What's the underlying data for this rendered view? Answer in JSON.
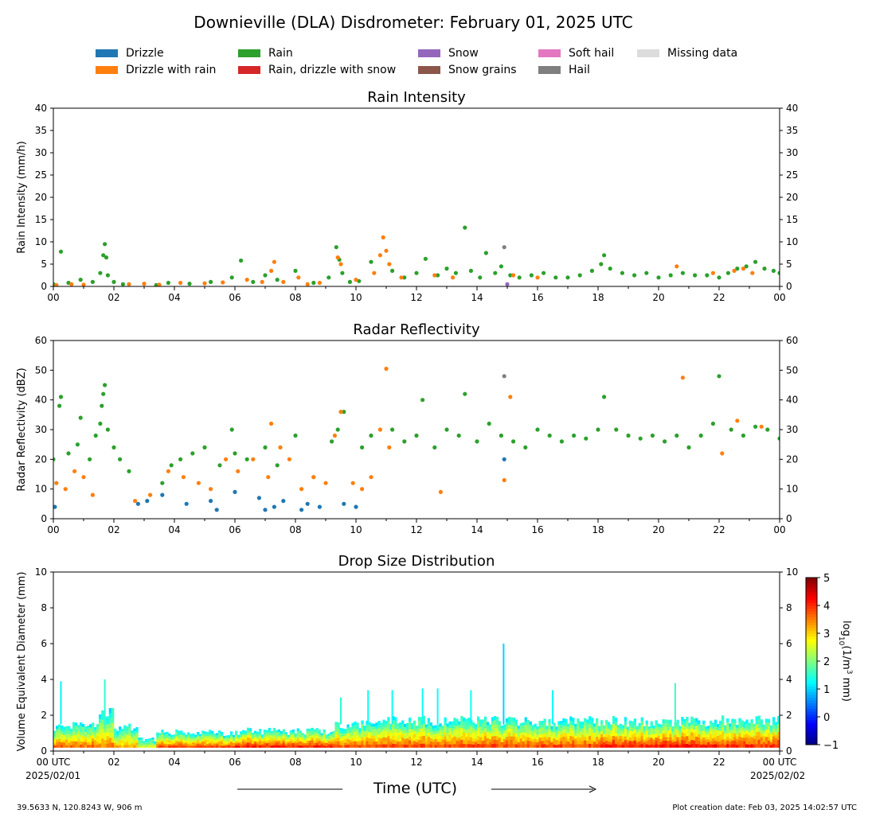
{
  "title": "Downieville (DLA) Disdrometer: February 01, 2025 UTC",
  "legend": [
    {
      "label": "Drizzle",
      "color": "#1f77b4"
    },
    {
      "label": "Drizzle with rain",
      "color": "#ff7f0e"
    },
    {
      "label": "Rain",
      "color": "#2ca02c"
    },
    {
      "label": "Rain, drizzle with snow",
      "color": "#d62728"
    },
    {
      "label": "Snow",
      "color": "#9467bd"
    },
    {
      "label": "Snow grains",
      "color": "#8c564b"
    },
    {
      "label": "Soft hail",
      "color": "#e377c2"
    },
    {
      "label": "Hail",
      "color": "#7f7f7f"
    },
    {
      "label": "Missing data",
      "color": "#dcdcdc"
    }
  ],
  "x_axis": {
    "label": "Time (UTC)",
    "ticks": [
      "00",
      "02",
      "04",
      "06",
      "08",
      "10",
      "12",
      "14",
      "16",
      "18",
      "20",
      "22",
      "00"
    ],
    "bottom_first": "00 UTC",
    "bottom_last": "00 UTC",
    "start_date": "2025/02/01",
    "end_date": "2025/02/02"
  },
  "footer": {
    "location": "39.5633 N, 120.8243 W, 906 m",
    "created": "Plot creation date: Feb 03, 2025 14:02:57 UTC"
  },
  "chart_data": [
    {
      "type": "scatter",
      "title": "Rain Intensity",
      "ylabel": "Rain Intensity (mm/h)",
      "xlim": [
        0,
        24
      ],
      "ylim": [
        0,
        40
      ],
      "yticks": [
        0,
        5,
        10,
        15,
        20,
        25,
        30,
        35,
        40
      ],
      "series": [
        {
          "name": "Rain",
          "color": "#2ca02c",
          "x": [
            0.0,
            0.25,
            0.5,
            0.9,
            1.3,
            1.55,
            1.65,
            1.7,
            1.75,
            1.8,
            2.0,
            2.3,
            3.4,
            3.8,
            4.5,
            5.2,
            5.9,
            6.2,
            6.6,
            7.0,
            7.4,
            8.0,
            8.6,
            9.1,
            9.35,
            9.45,
            9.55,
            9.8,
            10.1,
            10.5,
            11.2,
            11.6,
            12.0,
            12.3,
            12.7,
            13.0,
            13.3,
            13.6,
            13.8,
            14.1,
            14.3,
            14.6,
            14.8,
            15.1,
            15.4,
            15.8,
            16.2,
            16.6,
            17.0,
            17.4,
            17.8,
            18.1,
            18.2,
            18.4,
            18.8,
            19.2,
            19.6,
            20.0,
            20.4,
            20.8,
            21.2,
            21.6,
            22.0,
            22.3,
            22.6,
            22.9,
            23.2,
            23.5,
            23.8,
            24.0
          ],
          "y": [
            0.5,
            7.8,
            0.8,
            1.5,
            1.0,
            3.0,
            7.0,
            9.5,
            6.5,
            2.5,
            1.0,
            0.5,
            0.3,
            0.8,
            0.6,
            1.0,
            2.0,
            5.8,
            1.0,
            2.5,
            1.5,
            3.5,
            0.8,
            2.0,
            8.8,
            6.0,
            3.0,
            1.0,
            1.2,
            5.5,
            3.5,
            2.0,
            3.0,
            6.2,
            2.5,
            4.0,
            3.0,
            13.2,
            3.5,
            2.0,
            7.5,
            3.0,
            4.5,
            2.5,
            2.0,
            2.5,
            3.0,
            2.0,
            2.0,
            2.5,
            3.5,
            5.0,
            7.0,
            4.0,
            3.0,
            2.5,
            3.0,
            2.0,
            2.5,
            3.0,
            2.5,
            2.5,
            2.0,
            3.0,
            4.0,
            4.5,
            5.5,
            4.0,
            3.5,
            3.0
          ]
        },
        {
          "name": "Drizzle with rain",
          "color": "#ff7f0e",
          "x": [
            0.1,
            0.6,
            1.0,
            2.5,
            3.0,
            3.5,
            4.2,
            5.0,
            5.6,
            6.4,
            6.9,
            7.2,
            7.3,
            7.6,
            8.1,
            8.4,
            8.8,
            9.4,
            9.5,
            10.0,
            10.6,
            10.8,
            10.9,
            11.0,
            11.1,
            11.5,
            12.6,
            13.2,
            15.2,
            16.0,
            20.6,
            21.8,
            22.5,
            22.8,
            23.1
          ],
          "y": [
            0.3,
            0.5,
            0.4,
            0.5,
            0.6,
            0.4,
            0.8,
            0.7,
            0.9,
            1.5,
            1.0,
            3.5,
            5.5,
            1.0,
            2.0,
            0.5,
            0.8,
            6.5,
            5.0,
            1.5,
            3.0,
            7.0,
            11.0,
            8.0,
            5.0,
            2.0,
            2.5,
            2.0,
            2.5,
            2.0,
            4.5,
            3.0,
            3.5,
            4.0,
            3.0
          ]
        },
        {
          "name": "Hail",
          "color": "#7f7f7f",
          "x": [
            14.9
          ],
          "y": [
            8.8
          ]
        },
        {
          "name": "Snow",
          "color": "#9467bd",
          "x": [
            15.0
          ],
          "y": [
            0.5
          ]
        }
      ]
    },
    {
      "type": "scatter",
      "title": "Radar Reflectivity",
      "ylabel": "Radar Reflectivity (dBZ)",
      "xlim": [
        0,
        24
      ],
      "ylim": [
        0,
        60
      ],
      "yticks": [
        0,
        10,
        20,
        30,
        40,
        50,
        60
      ],
      "series": [
        {
          "name": "Rain",
          "color": "#2ca02c",
          "x": [
            0.0,
            0.2,
            0.25,
            0.5,
            0.8,
            0.9,
            1.2,
            1.4,
            1.55,
            1.6,
            1.65,
            1.7,
            1.8,
            2.0,
            2.2,
            2.5,
            3.6,
            3.9,
            4.2,
            4.6,
            5.0,
            5.5,
            5.9,
            6.0,
            6.4,
            7.0,
            7.4,
            8.0,
            8.6,
            9.2,
            9.4,
            9.6,
            10.2,
            10.5,
            11.2,
            11.6,
            12.0,
            12.2,
            12.6,
            13.0,
            13.4,
            13.6,
            14.0,
            14.4,
            14.8,
            15.2,
            15.6,
            16.0,
            16.4,
            16.8,
            17.2,
            17.6,
            18.0,
            18.2,
            18.6,
            19.0,
            19.4,
            19.8,
            20.2,
            20.6,
            21.0,
            21.4,
            21.8,
            22.0,
            22.4,
            22.8,
            23.2,
            23.6,
            24.0
          ],
          "y": [
            20,
            38,
            41,
            22,
            25,
            34,
            20,
            28,
            32,
            38,
            42,
            45,
            30,
            24,
            20,
            16,
            12,
            18,
            20,
            22,
            24,
            18,
            30,
            22,
            20,
            24,
            18,
            28,
            14,
            26,
            30,
            36,
            24,
            28,
            30,
            26,
            28,
            40,
            24,
            30,
            28,
            42,
            26,
            32,
            28,
            26,
            24,
            30,
            28,
            26,
            28,
            27,
            30,
            41,
            30,
            28,
            27,
            28,
            26,
            28,
            24,
            28,
            32,
            48,
            30,
            28,
            31,
            30,
            27
          ]
        },
        {
          "name": "Drizzle with rain",
          "color": "#ff7f0e",
          "x": [
            0.1,
            0.4,
            0.7,
            1.0,
            1.3,
            2.7,
            3.2,
            3.8,
            4.3,
            4.8,
            5.2,
            5.7,
            6.1,
            6.6,
            7.1,
            7.2,
            7.5,
            7.8,
            8.2,
            8.6,
            9.0,
            9.3,
            9.5,
            9.9,
            10.2,
            10.5,
            10.8,
            11.0,
            11.1,
            12.8,
            14.9,
            15.1,
            20.8,
            22.1,
            22.6,
            23.4
          ],
          "y": [
            12,
            10,
            16,
            14,
            8,
            6,
            8,
            16,
            14,
            12,
            10,
            20,
            16,
            20,
            14,
            32,
            24,
            20,
            10,
            14,
            12,
            28,
            36,
            12,
            10,
            14,
            30,
            50.5,
            24,
            9,
            13,
            41,
            47.5,
            22,
            33,
            31
          ]
        },
        {
          "name": "Drizzle",
          "color": "#1f77b4",
          "x": [
            0.05,
            2.8,
            3.1,
            3.6,
            4.4,
            5.2,
            5.4,
            6.0,
            6.8,
            7.0,
            7.3,
            7.6,
            8.2,
            8.4,
            8.8,
            9.6,
            10.0,
            14.9
          ],
          "y": [
            4,
            5,
            6,
            8,
            5,
            6,
            3,
            9,
            7,
            3,
            4,
            6,
            3,
            5,
            4,
            5,
            4,
            20
          ]
        },
        {
          "name": "Hail",
          "color": "#7f7f7f",
          "x": [
            14.9
          ],
          "y": [
            48
          ]
        }
      ]
    },
    {
      "type": "heatmap",
      "title": "Drop Size Distribution",
      "ylabel": "Volume Equivalent Diameter (mm)",
      "xlim": [
        0,
        24
      ],
      "ylim": [
        0,
        10
      ],
      "yticks": [
        0,
        2,
        4,
        6,
        8,
        10
      ],
      "colorbar": {
        "label": "log10(1/m3 mm)",
        "ticks": [
          5,
          4,
          3,
          2,
          1,
          0,
          -1
        ],
        "range": [
          -1,
          5
        ],
        "colormap": "jet"
      },
      "time_bins": [
        {
          "x0": 0.0,
          "x1": 1.5,
          "top_mm": 1.5,
          "level": 3.6
        },
        {
          "x0": 1.5,
          "x1": 2.0,
          "top_mm": 2.5,
          "level": 3.4
        },
        {
          "x0": 2.0,
          "x1": 2.8,
          "top_mm": 1.4,
          "level": 3.2
        },
        {
          "x0": 2.8,
          "x1": 3.4,
          "top_mm": 0.7,
          "level": 2.6
        },
        {
          "x0": 3.4,
          "x1": 6.0,
          "top_mm": 1.1,
          "level": 3.8
        },
        {
          "x0": 6.0,
          "x1": 9.3,
          "top_mm": 1.2,
          "level": 4.1
        },
        {
          "x0": 9.3,
          "x1": 10.8,
          "top_mm": 1.6,
          "level": 3.7
        },
        {
          "x0": 10.8,
          "x1": 14.0,
          "top_mm": 1.8,
          "level": 3.8
        },
        {
          "x0": 14.0,
          "x1": 18.0,
          "top_mm": 1.8,
          "level": 3.8
        },
        {
          "x0": 18.0,
          "x1": 22.0,
          "top_mm": 1.8,
          "level": 4.1
        },
        {
          "x0": 22.0,
          "x1": 24.0,
          "top_mm": 1.9,
          "level": 4.0
        }
      ],
      "spikes": [
        {
          "x": 0.25,
          "top_mm": 3.9,
          "level": 1.2
        },
        {
          "x": 1.7,
          "top_mm": 4.0,
          "level": 1.5
        },
        {
          "x": 9.5,
          "top_mm": 3.0,
          "level": 1.5
        },
        {
          "x": 10.4,
          "top_mm": 3.4,
          "level": 1.3
        },
        {
          "x": 11.2,
          "top_mm": 3.4,
          "level": 1.3
        },
        {
          "x": 12.2,
          "top_mm": 3.5,
          "level": 1.3
        },
        {
          "x": 12.7,
          "top_mm": 3.5,
          "level": 1.3
        },
        {
          "x": 13.8,
          "top_mm": 3.4,
          "level": 1.3
        },
        {
          "x": 14.88,
          "top_mm": 6.0,
          "level": 1.0
        },
        {
          "x": 16.5,
          "top_mm": 3.4,
          "level": 1.3
        },
        {
          "x": 20.55,
          "top_mm": 3.8,
          "level": 1.6
        }
      ]
    }
  ]
}
